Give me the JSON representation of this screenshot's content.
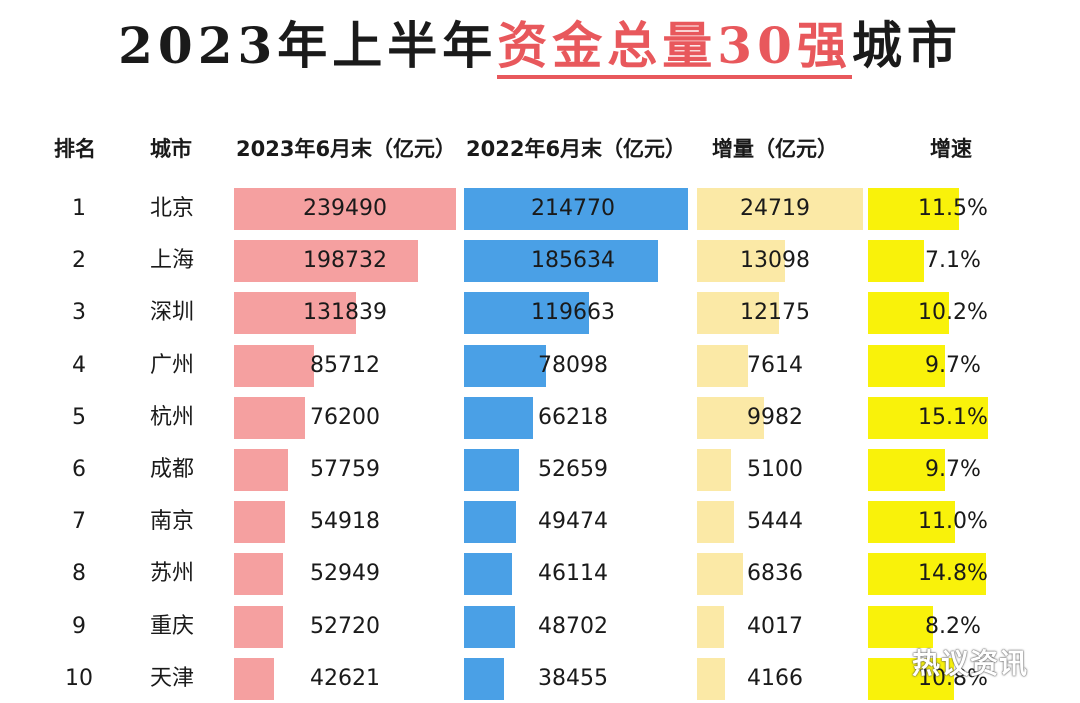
{
  "title": {
    "prefix": "2023年上半年",
    "highlight": "资金总量30强",
    "suffix": "城市"
  },
  "headers": {
    "rank": "排名",
    "city": "城市",
    "col2023": "2023年6月末（亿元）",
    "col2022": "2022年6月末（亿元）",
    "increase": "增量（亿元）",
    "rate": "增速"
  },
  "colors": {
    "bar_2023": "#f5a0a0",
    "bar_2022": "#4aa0e6",
    "bar_increase": "#fbe9a6",
    "bar_rate": "#f9f20a",
    "title_highlight": "#e8585c"
  },
  "chart_data": {
    "type": "table",
    "columns": [
      "排名",
      "城市",
      "2023年6月末（亿元）",
      "2022年6月末（亿元）",
      "增量（亿元）",
      "增速"
    ],
    "rows": [
      {
        "rank": "1",
        "city": "北京",
        "v2023": 239490,
        "v2022": 214770,
        "inc": 24719,
        "rate": "11.5%"
      },
      {
        "rank": "2",
        "city": "上海",
        "v2023": 198732,
        "v2022": 185634,
        "inc": 13098,
        "rate": "7.1%"
      },
      {
        "rank": "3",
        "city": "深圳",
        "v2023": 131839,
        "v2022": 119663,
        "inc": 12175,
        "rate": "10.2%"
      },
      {
        "rank": "4",
        "city": "广州",
        "v2023": 85712,
        "v2022": 78098,
        "inc": 7614,
        "rate": "9.7%"
      },
      {
        "rank": "5",
        "city": "杭州",
        "v2023": 76200,
        "v2022": 66218,
        "inc": 9982,
        "rate": "15.1%"
      },
      {
        "rank": "6",
        "city": "成都",
        "v2023": 57759,
        "v2022": 52659,
        "inc": 5100,
        "rate": "9.7%"
      },
      {
        "rank": "7",
        "city": "南京",
        "v2023": 54918,
        "v2022": 49474,
        "inc": 5444,
        "rate": "11.0%"
      },
      {
        "rank": "8",
        "city": "苏州",
        "v2023": 52949,
        "v2022": 46114,
        "inc": 6836,
        "rate": "14.8%"
      },
      {
        "rank": "9",
        "city": "重庆",
        "v2023": 52720,
        "v2022": 48702,
        "inc": 4017,
        "rate": "8.2%"
      },
      {
        "rank": "10",
        "city": "天津",
        "v2023": 42621,
        "v2022": 38455,
        "inc": 4166,
        "rate": "10.8%"
      }
    ]
  },
  "watermark": "热议资讯"
}
